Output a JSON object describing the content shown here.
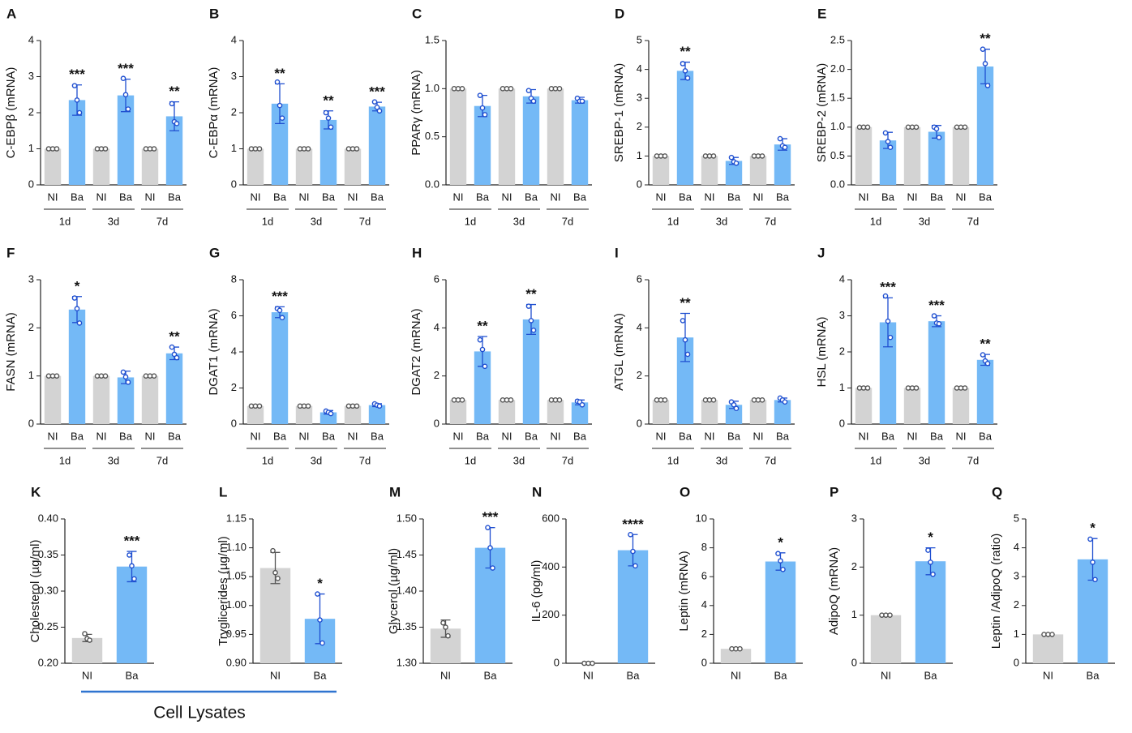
{
  "chart_data": [
    {
      "type": "bar",
      "panel": "A",
      "ylabel": "C-EBPβ (mRNA)",
      "categories": [
        "NI",
        "Ba",
        "NI",
        "Ba",
        "NI",
        "Ba"
      ],
      "groups": [
        "1d",
        "3d",
        "7d"
      ],
      "colors": [
        "#d3d3d3",
        "#74b9f6",
        "#d3d3d3",
        "#74b9f6",
        "#d3d3d3",
        "#74b9f6"
      ],
      "values": [
        1,
        2.35,
        1,
        2.48,
        1,
        1.9
      ],
      "errors": [
        null,
        0.42,
        null,
        0.45,
        null,
        0.4
      ],
      "points": [
        [
          1,
          1,
          1
        ],
        [
          2.75,
          2.35,
          2.0
        ],
        [
          1,
          1,
          1
        ],
        [
          2.95,
          2.5,
          2.1
        ],
        [
          1,
          1,
          1
        ],
        [
          2.25,
          1.75,
          1.7
        ]
      ],
      "significance": [
        null,
        "***",
        null,
        "***",
        null,
        "**"
      ],
      "ylim": [
        0,
        4
      ],
      "yticks": [
        0,
        1,
        2,
        3,
        4
      ]
    },
    {
      "type": "bar",
      "panel": "B",
      "ylabel": "C-EBPα (mRNA)",
      "categories": [
        "NI",
        "Ba",
        "NI",
        "Ba",
        "NI",
        "Ba"
      ],
      "groups": [
        "1d",
        "3d",
        "7d"
      ],
      "colors": [
        "#d3d3d3",
        "#74b9f6",
        "#d3d3d3",
        "#74b9f6",
        "#d3d3d3",
        "#74b9f6"
      ],
      "values": [
        1,
        2.25,
        1,
        1.8,
        1,
        2.17
      ],
      "errors": [
        null,
        0.55,
        null,
        0.25,
        null,
        0.12
      ],
      "points": [
        [
          1,
          1,
          1
        ],
        [
          2.85,
          2.2,
          1.85
        ],
        [
          1,
          1,
          1
        ],
        [
          2.0,
          1.85,
          1.6
        ],
        [
          1,
          1,
          1
        ],
        [
          2.3,
          2.15,
          2.05
        ]
      ],
      "significance": [
        null,
        "**",
        null,
        "**",
        null,
        "***"
      ],
      "ylim": [
        0,
        4
      ],
      "yticks": [
        0,
        1,
        2,
        3,
        4
      ]
    },
    {
      "type": "bar",
      "panel": "C",
      "ylabel": "PPARγ (mRNA)",
      "categories": [
        "NI",
        "Ba",
        "NI",
        "Ba",
        "NI",
        "Ba"
      ],
      "groups": [
        "1d",
        "3d",
        "7d"
      ],
      "colors": [
        "#d3d3d3",
        "#74b9f6",
        "#d3d3d3",
        "#74b9f6",
        "#d3d3d3",
        "#74b9f6"
      ],
      "values": [
        1,
        0.82,
        1,
        0.92,
        1,
        0.88
      ],
      "errors": [
        null,
        0.11,
        null,
        0.07,
        null,
        0.03
      ],
      "points": [
        [
          1,
          1,
          1
        ],
        [
          0.93,
          0.8,
          0.73
        ],
        [
          1,
          1,
          1
        ],
        [
          0.98,
          0.9,
          0.87
        ],
        [
          1,
          1,
          1
        ],
        [
          0.9,
          0.87,
          0.87
        ]
      ],
      "ylim": [
        0,
        1.5
      ],
      "yticks": [
        {
          "value": 0,
          "label": "0.0"
        },
        0.5,
        {
          "value": 1,
          "label": "1.0"
        },
        1.5
      ]
    },
    {
      "type": "bar",
      "panel": "D",
      "ylabel": "SREBP-1 (mRNA)",
      "categories": [
        "NI",
        "Ba",
        "NI",
        "Ba",
        "NI",
        "Ba"
      ],
      "groups": [
        "1d",
        "3d",
        "7d"
      ],
      "colors": [
        "#d3d3d3",
        "#74b9f6",
        "#d3d3d3",
        "#74b9f6",
        "#d3d3d3",
        "#74b9f6"
      ],
      "values": [
        1,
        3.95,
        1,
        0.83,
        1,
        1.4
      ],
      "errors": [
        null,
        0.3,
        null,
        0.12,
        null,
        0.2
      ],
      "points": [
        [
          1,
          1,
          1
        ],
        [
          4.2,
          3.95,
          3.7
        ],
        [
          1,
          1,
          1
        ],
        [
          0.95,
          0.8,
          0.75
        ],
        [
          1,
          1,
          1
        ],
        [
          1.6,
          1.35,
          1.3
        ]
      ],
      "significance": [
        null,
        "**",
        null,
        null,
        null,
        null
      ],
      "ylim": [
        0,
        5
      ],
      "yticks": [
        0,
        1,
        2,
        3,
        4,
        5
      ]
    },
    {
      "type": "bar",
      "panel": "E",
      "ylabel": "SREBP-2 (mRNA)",
      "categories": [
        "NI",
        "Ba",
        "NI",
        "Ba",
        "NI",
        "Ba"
      ],
      "groups": [
        "1d",
        "3d",
        "7d"
      ],
      "colors": [
        "#d3d3d3",
        "#74b9f6",
        "#d3d3d3",
        "#74b9f6",
        "#d3d3d3",
        "#74b9f6"
      ],
      "values": [
        1,
        0.77,
        1,
        0.92,
        1,
        2.05
      ],
      "errors": [
        null,
        0.14,
        null,
        0.11,
        null,
        0.3
      ],
      "points": [
        [
          1,
          1,
          1
        ],
        [
          0.9,
          0.75,
          0.65
        ],
        [
          1,
          1,
          1
        ],
        [
          1.0,
          0.97,
          0.82
        ],
        [
          1,
          1,
          1
        ],
        [
          2.35,
          2.1,
          1.72
        ]
      ],
      "significance": [
        null,
        null,
        null,
        null,
        null,
        "**"
      ],
      "ylim": [
        0,
        2.5
      ],
      "yticks": [
        {
          "value": 0,
          "label": "0.0"
        },
        0.5,
        {
          "value": 1,
          "label": "1.0"
        },
        1.5,
        {
          "value": 2,
          "label": "2.0"
        },
        2.5
      ]
    },
    {
      "type": "bar",
      "panel": "F",
      "ylabel": "FASN (mRNA)",
      "categories": [
        "NI",
        "Ba",
        "NI",
        "Ba",
        "NI",
        "Ba"
      ],
      "groups": [
        "1d",
        "3d",
        "7d"
      ],
      "colors": [
        "#d3d3d3",
        "#74b9f6",
        "#d3d3d3",
        "#74b9f6",
        "#d3d3d3",
        "#74b9f6"
      ],
      "values": [
        1,
        2.38,
        1,
        0.97,
        1,
        1.47
      ],
      "errors": [
        null,
        0.27,
        null,
        0.13,
        null,
        0.13
      ],
      "points": [
        [
          1,
          1,
          1
        ],
        [
          2.62,
          2.4,
          2.1
        ],
        [
          1,
          1,
          1
        ],
        [
          1.08,
          0.98,
          0.87
        ],
        [
          1,
          1,
          1
        ],
        [
          1.6,
          1.45,
          1.38
        ]
      ],
      "significance": [
        null,
        "*",
        null,
        null,
        null,
        "**"
      ],
      "ylim": [
        0,
        3
      ],
      "yticks": [
        0,
        1,
        2,
        3
      ]
    },
    {
      "type": "bar",
      "panel": "G",
      "ylabel": "DGAT1 (mRNA)",
      "categories": [
        "NI",
        "Ba",
        "NI",
        "Ba",
        "NI",
        "Ba"
      ],
      "groups": [
        "1d",
        "3d",
        "7d"
      ],
      "colors": [
        "#d3d3d3",
        "#74b9f6",
        "#d3d3d3",
        "#74b9f6",
        "#d3d3d3",
        "#74b9f6"
      ],
      "values": [
        1,
        6.2,
        1,
        0.65,
        1,
        1.05
      ],
      "errors": [
        null,
        0.3,
        null,
        0.1,
        null,
        0.08
      ],
      "points": [
        [
          1,
          1,
          1
        ],
        [
          6.4,
          6.3,
          5.9
        ],
        [
          1,
          1,
          1
        ],
        [
          0.72,
          0.65,
          0.58
        ],
        [
          1,
          1,
          1
        ],
        [
          1.12,
          1.05,
          1.0
        ]
      ],
      "significance": [
        null,
        "***",
        null,
        null,
        null,
        null
      ],
      "ylim": [
        0,
        8
      ],
      "yticks": [
        0,
        2,
        4,
        6,
        8
      ]
    },
    {
      "type": "bar",
      "panel": "H",
      "ylabel": "DGAT2 (mRNA)",
      "categories": [
        "NI",
        "Ba",
        "NI",
        "Ba",
        "NI",
        "Ba"
      ],
      "groups": [
        "1d",
        "3d",
        "7d"
      ],
      "colors": [
        "#d3d3d3",
        "#74b9f6",
        "#d3d3d3",
        "#74b9f6",
        "#d3d3d3",
        "#74b9f6"
      ],
      "values": [
        1,
        3.02,
        1,
        4.35,
        1,
        0.9
      ],
      "errors": [
        null,
        0.62,
        null,
        0.62,
        null,
        0.1
      ],
      "points": [
        [
          1,
          1,
          1
        ],
        [
          3.5,
          3.1,
          2.4
        ],
        [
          1,
          1,
          1
        ],
        [
          4.9,
          4.3,
          3.9
        ],
        [
          1,
          1,
          1
        ],
        [
          0.95,
          0.92,
          0.8
        ]
      ],
      "significance": [
        null,
        "**",
        null,
        "**",
        null,
        null
      ],
      "ylim": [
        0,
        6
      ],
      "yticks": [
        0,
        2,
        4,
        6
      ]
    },
    {
      "type": "bar",
      "panel": "I",
      "ylabel": "ATGL (mRNA)",
      "categories": [
        "NI",
        "Ba",
        "NI",
        "Ba",
        "NI",
        "Ba"
      ],
      "groups": [
        "1d",
        "3d",
        "7d"
      ],
      "colors": [
        "#d3d3d3",
        "#74b9f6",
        "#d3d3d3",
        "#74b9f6",
        "#d3d3d3",
        "#74b9f6"
      ],
      "values": [
        1,
        3.6,
        1,
        0.8,
        1,
        1.0
      ],
      "errors": [
        null,
        1.0,
        null,
        0.15,
        null,
        0.08
      ],
      "points": [
        [
          1,
          1,
          1
        ],
        [
          4.3,
          3.5,
          2.9
        ],
        [
          1,
          1,
          1
        ],
        [
          0.92,
          0.8,
          0.65
        ],
        [
          1,
          1,
          1
        ],
        [
          1.08,
          1.0,
          0.92
        ]
      ],
      "significance": [
        null,
        "**",
        null,
        null,
        null,
        null
      ],
      "ylim": [
        0,
        6
      ],
      "yticks": [
        0,
        2,
        4,
        6
      ]
    },
    {
      "type": "bar",
      "panel": "J",
      "ylabel": "HSL (mRNA)",
      "categories": [
        "NI",
        "Ba",
        "NI",
        "Ba",
        "NI",
        "Ba"
      ],
      "groups": [
        "1d",
        "3d",
        "7d"
      ],
      "colors": [
        "#d3d3d3",
        "#74b9f6",
        "#d3d3d3",
        "#74b9f6",
        "#d3d3d3",
        "#74b9f6"
      ],
      "values": [
        1,
        2.82,
        1,
        2.85,
        1,
        1.78
      ],
      "errors": [
        null,
        0.68,
        null,
        0.15,
        null,
        0.15
      ],
      "points": [
        [
          1,
          1,
          1
        ],
        [
          3.55,
          2.85,
          2.4
        ],
        [
          1,
          1,
          1
        ],
        [
          3.0,
          2.8,
          2.78
        ],
        [
          1,
          1,
          1
        ],
        [
          1.92,
          1.75,
          1.68
        ]
      ],
      "significance": [
        null,
        "***",
        null,
        "***",
        null,
        "**"
      ],
      "ylim": [
        0,
        4
      ],
      "yticks": [
        0,
        1,
        2,
        3,
        4
      ]
    },
    {
      "type": "bar",
      "panel": "K",
      "ylabel": "Cholesterol (µg/ml)",
      "categories": [
        "NI",
        "Ba"
      ],
      "colors": [
        "#d3d3d3",
        "#74b9f6"
      ],
      "values": [
        0.235,
        0.334
      ],
      "errors": [
        0.005,
        0.021
      ],
      "points": [
        [
          0.241,
          0.234,
          0.232
        ],
        [
          0.35,
          0.335,
          0.317
        ]
      ],
      "significance": [
        null,
        "***"
      ],
      "ylim": [
        0.2,
        0.4
      ],
      "yticks": [
        {
          "value": 0.2,
          "label": "0.20"
        },
        0.25,
        {
          "value": 0.3,
          "label": "0.30"
        },
        0.35,
        {
          "value": 0.4,
          "label": "0.40"
        }
      ]
    },
    {
      "type": "bar",
      "panel": "L",
      "ylabel": "Tryglicerides (µg/ml)",
      "categories": [
        "NI",
        "Ba"
      ],
      "colors": [
        "#d3d3d3",
        "#74b9f6"
      ],
      "values": [
        1.065,
        0.977
      ],
      "errors": [
        0.027,
        0.043
      ],
      "points": [
        [
          1.095,
          1.057,
          1.047
        ],
        [
          1.02,
          0.975,
          0.935
        ]
      ],
      "significance": [
        null,
        "*"
      ],
      "ylim": [
        0.9,
        1.15
      ],
      "yticks": [
        {
          "value": 0.9,
          "label": "0.90"
        },
        0.95,
        {
          "value": 1,
          "label": "1.00"
        },
        1.05,
        {
          "value": 1.1,
          "label": "1.10"
        },
        1.15
      ]
    },
    {
      "type": "bar",
      "panel": "M",
      "ylabel": "Glycerol (µg/ml)",
      "categories": [
        "NI",
        "Ba"
      ],
      "colors": [
        "#d3d3d3",
        "#74b9f6"
      ],
      "values": [
        1.348,
        1.46
      ],
      "errors": [
        0.012,
        0.028
      ],
      "points": [
        [
          1.356,
          1.35,
          1.338
        ],
        [
          1.488,
          1.46,
          1.432
        ]
      ],
      "significance": [
        null,
        "***"
      ],
      "ylim": [
        1.3,
        1.5
      ],
      "yticks": [
        {
          "value": 1.3,
          "label": "1.30"
        },
        1.35,
        {
          "value": 1.4,
          "label": "1.40"
        },
        1.45,
        {
          "value": 1.5,
          "label": "1.50"
        }
      ]
    },
    {
      "type": "bar",
      "panel": "N",
      "ylabel": "IL-6 (pg/ml)",
      "categories": [
        "NI",
        "Ba"
      ],
      "colors": [
        "#d3d3d3",
        "#74b9f6"
      ],
      "values": [
        0,
        470
      ],
      "errors": [
        null,
        65
      ],
      "points": [
        [
          0,
          0,
          0
        ],
        [
          535,
          465,
          405
        ]
      ],
      "significance": [
        null,
        "****"
      ],
      "ylim": [
        0,
        600
      ],
      "yticks": [
        0,
        200,
        400,
        600
      ]
    },
    {
      "type": "bar",
      "panel": "O",
      "ylabel": "Leptin (mRNA)",
      "categories": [
        "NI",
        "Ba"
      ],
      "colors": [
        "#d3d3d3",
        "#74b9f6"
      ],
      "values": [
        1,
        7.05
      ],
      "errors": [
        null,
        0.6
      ],
      "points": [
        [
          1,
          1,
          1
        ],
        [
          7.6,
          7.1,
          6.5
        ]
      ],
      "significance": [
        null,
        "*"
      ],
      "ylim": [
        0,
        10
      ],
      "yticks": [
        0,
        2,
        4,
        6,
        8,
        10
      ]
    },
    {
      "type": "bar",
      "panel": "P",
      "ylabel": "AdipoQ (mRNA)",
      "categories": [
        "NI",
        "Ba"
      ],
      "colors": [
        "#d3d3d3",
        "#74b9f6"
      ],
      "values": [
        1,
        2.12
      ],
      "errors": [
        null,
        0.28
      ],
      "points": [
        [
          1,
          1,
          1
        ],
        [
          2.35,
          2.1,
          1.85
        ]
      ],
      "significance": [
        null,
        "*"
      ],
      "ylim": [
        0,
        3
      ],
      "yticks": [
        0,
        1,
        2,
        3
      ]
    },
    {
      "type": "bar",
      "panel": "Q",
      "ylabel": "Leptin /AdipoQ (ratio)",
      "categories": [
        "NI",
        "Ba"
      ],
      "colors": [
        "#d3d3d3",
        "#74b9f6"
      ],
      "values": [
        1,
        3.6
      ],
      "errors": [
        null,
        0.72
      ],
      "points": [
        [
          1,
          1,
          1
        ],
        [
          4.3,
          3.5,
          2.9
        ]
      ],
      "significance": [
        null,
        "*"
      ],
      "ylim": [
        0,
        5
      ],
      "yticks": [
        0,
        1,
        2,
        3,
        4,
        5
      ]
    }
  ],
  "caption": "Cell Lysates"
}
